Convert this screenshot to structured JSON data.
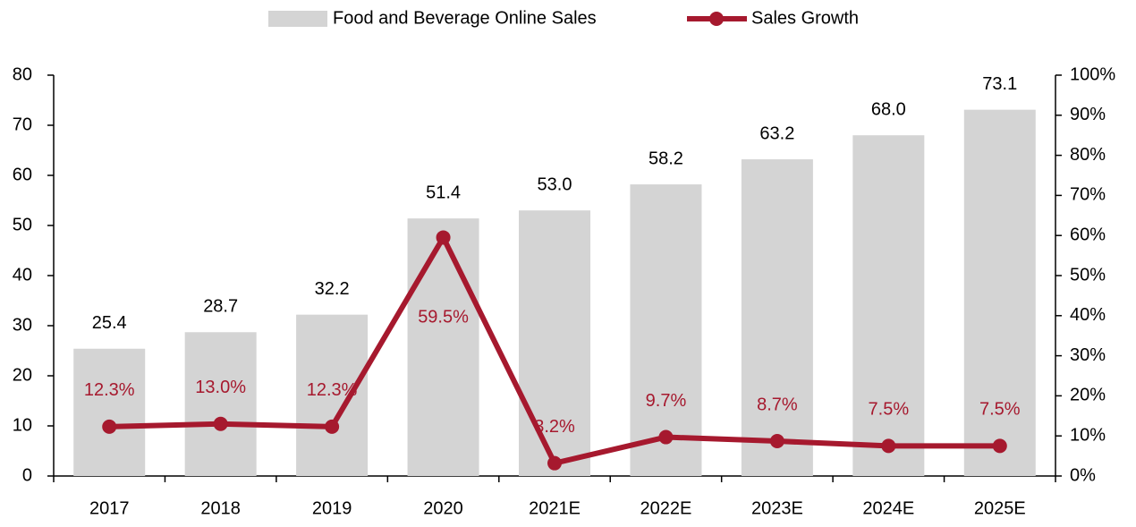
{
  "chart_data": {
    "type": "bar-line",
    "categories": [
      "2017",
      "2018",
      "2019",
      "2020",
      "2021E",
      "2022E",
      "2023E",
      "2024E",
      "2025E"
    ],
    "series": [
      {
        "name": "Food and Beverage Online Sales",
        "type": "bar",
        "color": "#d4d4d4",
        "values": [
          25.4,
          28.7,
          32.2,
          51.4,
          53.0,
          58.2,
          63.2,
          68.0,
          73.1
        ],
        "value_labels": [
          "25.4",
          "28.7",
          "32.2",
          "51.4",
          "53.0",
          "58.2",
          "63.2",
          "68.0",
          "73.1"
        ]
      },
      {
        "name": "Sales Growth",
        "type": "line",
        "axis": "y2",
        "color": "#a6192e",
        "values": [
          12.3,
          13.0,
          12.3,
          59.5,
          3.2,
          9.7,
          8.7,
          7.5,
          7.5
        ],
        "value_labels": [
          "12.3%",
          "13.0%",
          "12.3%",
          "59.5%",
          "3.2%",
          "9.7%",
          "8.7%",
          "7.5%",
          "7.5%"
        ]
      }
    ],
    "ylim": [
      0,
      80
    ],
    "yticks": [
      0,
      10,
      20,
      30,
      40,
      50,
      60,
      70,
      80
    ],
    "y2lim": [
      0,
      100
    ],
    "y2ticks": [
      {
        "value": 0,
        "label": "0%"
      },
      {
        "value": 10,
        "label": "10%"
      },
      {
        "value": 20,
        "label": "20%"
      },
      {
        "value": 30,
        "label": "30%"
      },
      {
        "value": 40,
        "label": "40%"
      },
      {
        "value": 50,
        "label": "50%"
      },
      {
        "value": 60,
        "label": "60%"
      },
      {
        "value": 70,
        "label": "70%"
      },
      {
        "value": 80,
        "label": "80%"
      },
      {
        "value": 90,
        "label": "90%"
      },
      {
        "value": 100,
        "label": "100%"
      }
    ],
    "grid": false,
    "legend": "top"
  }
}
